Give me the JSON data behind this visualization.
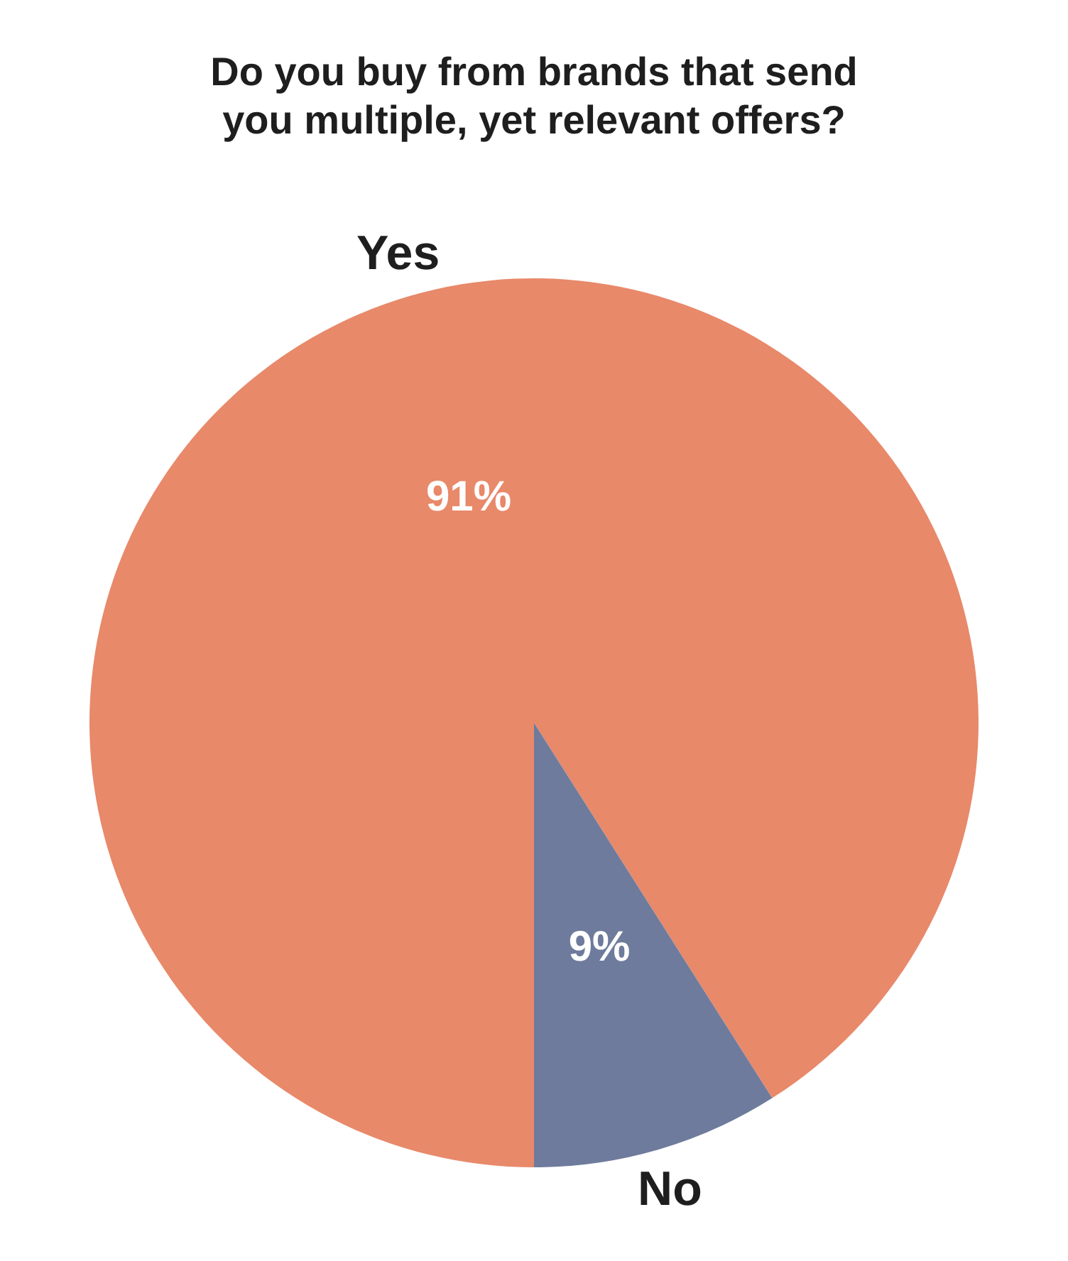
{
  "chart_data": {
    "type": "pie",
    "title": "Do you buy from brands that send\nyou multiple, yet relevant offers?",
    "categories": [
      "Yes",
      "No"
    ],
    "values": [
      91,
      9
    ],
    "colors": [
      "#e8896a",
      "#6e7b9c"
    ],
    "value_labels": [
      "91%",
      "9%"
    ]
  }
}
